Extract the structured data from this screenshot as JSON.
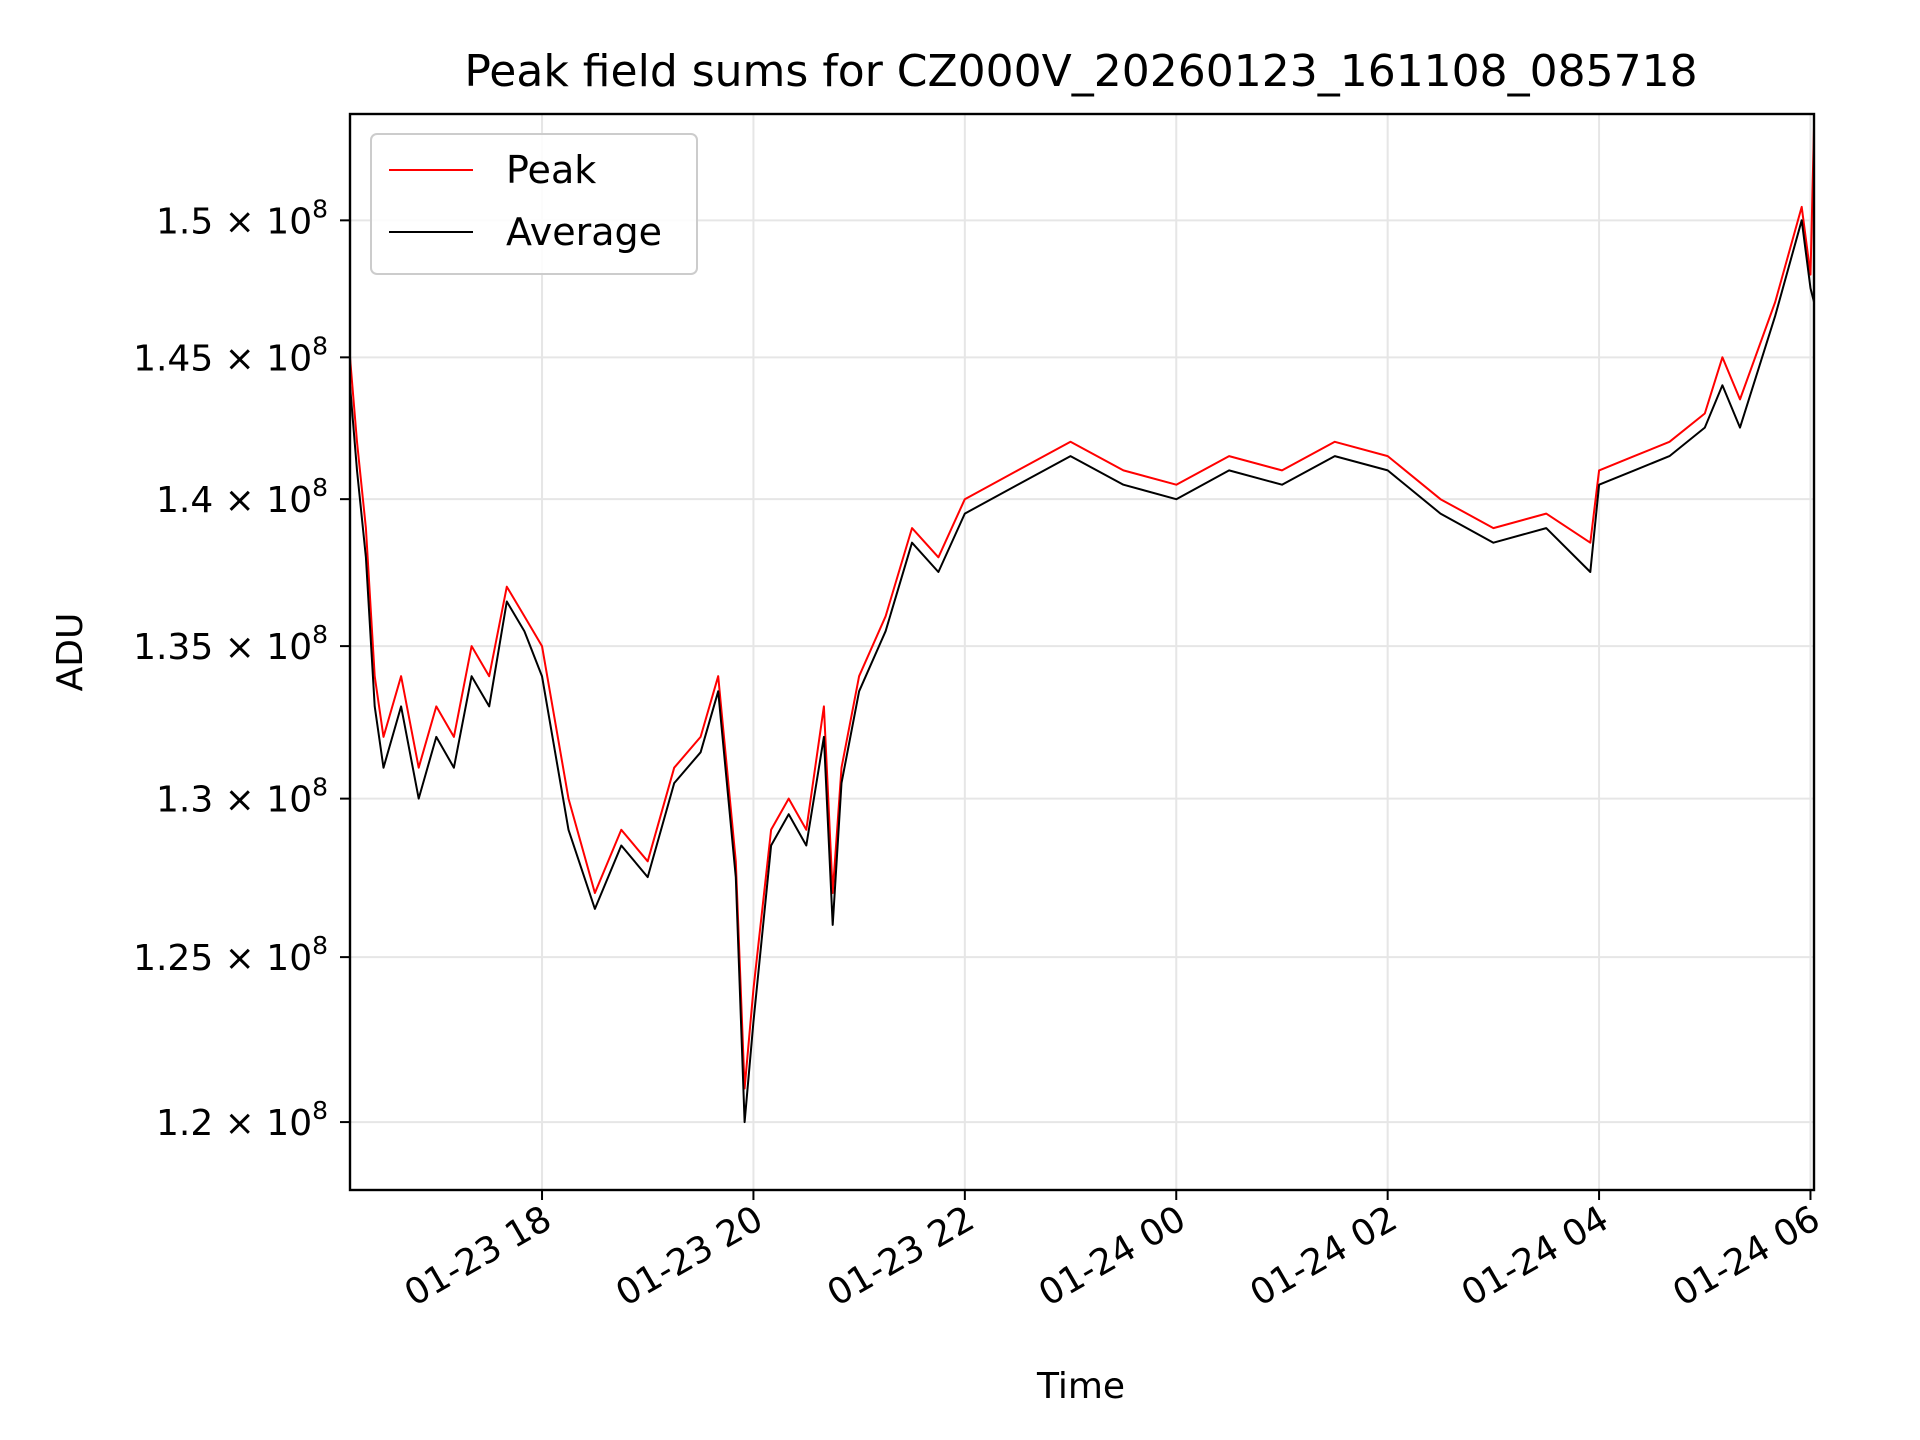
{
  "chart_data": {
    "type": "line",
    "title": "Peak field sums for CZ000V_20260123_161108_085718",
    "xlabel": "Time",
    "ylabel": "ADU",
    "y_scale": "log",
    "grid": true,
    "legend_position": "top-left",
    "xlim": [
      "2026-01-23 16:11",
      "2026-01-24 06:02"
    ],
    "ylim": [
      118000000,
      154000000
    ],
    "x_ticks": [
      {
        "value": "2026-01-23 18:00",
        "label": "01-23 18"
      },
      {
        "value": "2026-01-23 20:00",
        "label": "01-23 20"
      },
      {
        "value": "2026-01-23 22:00",
        "label": "01-23 22"
      },
      {
        "value": "2026-01-24 00:00",
        "label": "01-24 00"
      },
      {
        "value": "2026-01-24 02:00",
        "label": "01-24 02"
      },
      {
        "value": "2026-01-24 04:00",
        "label": "01-24 04"
      },
      {
        "value": "2026-01-24 06:00",
        "label": "01-24 06"
      }
    ],
    "y_ticks": [
      {
        "value": 120000000,
        "mantissa": "1.2",
        "exponent": "8"
      },
      {
        "value": 125000000,
        "mantissa": "1.25",
        "exponent": "8"
      },
      {
        "value": 130000000,
        "mantissa": "1.3",
        "exponent": "8"
      },
      {
        "value": 135000000,
        "mantissa": "1.35",
        "exponent": "8"
      },
      {
        "value": 140000000,
        "mantissa": "1.4",
        "exponent": "8"
      },
      {
        "value": 145000000,
        "mantissa": "1.45",
        "exponent": "8"
      },
      {
        "value": 150000000,
        "mantissa": "1.5",
        "exponent": "8"
      }
    ],
    "series": [
      {
        "name": "Peak",
        "color": "#ff0000",
        "x": [
          "2026-01-23 16:11",
          "2026-01-23 16:15",
          "2026-01-23 16:20",
          "2026-01-23 16:25",
          "2026-01-23 16:30",
          "2026-01-23 16:40",
          "2026-01-23 16:50",
          "2026-01-23 17:00",
          "2026-01-23 17:10",
          "2026-01-23 17:20",
          "2026-01-23 17:30",
          "2026-01-23 17:40",
          "2026-01-23 17:50",
          "2026-01-23 18:00",
          "2026-01-23 18:15",
          "2026-01-23 18:30",
          "2026-01-23 18:45",
          "2026-01-23 19:00",
          "2026-01-23 19:15",
          "2026-01-23 19:30",
          "2026-01-23 19:40",
          "2026-01-23 19:50",
          "2026-01-23 19:55",
          "2026-01-23 20:00",
          "2026-01-23 20:10",
          "2026-01-23 20:20",
          "2026-01-23 20:30",
          "2026-01-23 20:40",
          "2026-01-23 20:45",
          "2026-01-23 20:50",
          "2026-01-23 21:00",
          "2026-01-23 21:15",
          "2026-01-23 21:30",
          "2026-01-23 21:45",
          "2026-01-23 22:00",
          "2026-01-23 22:30",
          "2026-01-23 23:00",
          "2026-01-23 23:30",
          "2026-01-24 00:00",
          "2026-01-24 00:30",
          "2026-01-24 01:00",
          "2026-01-24 01:30",
          "2026-01-24 02:00",
          "2026-01-24 02:30",
          "2026-01-24 03:00",
          "2026-01-24 03:30",
          "2026-01-24 03:55",
          "2026-01-24 04:00",
          "2026-01-24 04:20",
          "2026-01-24 04:40",
          "2026-01-24 05:00",
          "2026-01-24 05:10",
          "2026-01-24 05:20",
          "2026-01-24 05:40",
          "2026-01-24 05:55",
          "2026-01-24 06:00",
          "2026-01-24 06:02"
        ],
        "y": [
          145000000,
          142000000,
          139000000,
          134000000,
          132000000,
          134000000,
          131000000,
          133000000,
          132000000,
          135000000,
          134000000,
          137000000,
          136000000,
          135000000,
          130000000,
          127000000,
          129000000,
          128000000,
          131000000,
          132000000,
          134000000,
          128000000,
          121000000,
          124000000,
          129000000,
          130000000,
          129000000,
          133000000,
          127000000,
          131000000,
          134000000,
          136000000,
          139000000,
          138000000,
          140000000,
          141000000,
          142000000,
          141000000,
          140500000,
          141500000,
          141000000,
          142000000,
          141500000,
          140000000,
          139000000,
          139500000,
          138500000,
          141000000,
          141500000,
          142000000,
          143000000,
          145000000,
          143500000,
          147000000,
          150500000,
          148000000,
          153500000
        ]
      },
      {
        "name": "Average",
        "color": "#000000",
        "x": [
          "2026-01-23 16:11",
          "2026-01-23 16:15",
          "2026-01-23 16:20",
          "2026-01-23 16:25",
          "2026-01-23 16:30",
          "2026-01-23 16:40",
          "2026-01-23 16:50",
          "2026-01-23 17:00",
          "2026-01-23 17:10",
          "2026-01-23 17:20",
          "2026-01-23 17:30",
          "2026-01-23 17:40",
          "2026-01-23 17:50",
          "2026-01-23 18:00",
          "2026-01-23 18:15",
          "2026-01-23 18:30",
          "2026-01-23 18:45",
          "2026-01-23 19:00",
          "2026-01-23 19:15",
          "2026-01-23 19:30",
          "2026-01-23 19:40",
          "2026-01-23 19:50",
          "2026-01-23 19:55",
          "2026-01-23 20:00",
          "2026-01-23 20:10",
          "2026-01-23 20:20",
          "2026-01-23 20:30",
          "2026-01-23 20:40",
          "2026-01-23 20:45",
          "2026-01-23 20:50",
          "2026-01-23 21:00",
          "2026-01-23 21:15",
          "2026-01-23 21:30",
          "2026-01-23 21:45",
          "2026-01-23 22:00",
          "2026-01-23 22:30",
          "2026-01-23 23:00",
          "2026-01-23 23:30",
          "2026-01-24 00:00",
          "2026-01-24 00:30",
          "2026-01-24 01:00",
          "2026-01-24 01:30",
          "2026-01-24 02:00",
          "2026-01-24 02:30",
          "2026-01-24 03:00",
          "2026-01-24 03:30",
          "2026-01-24 03:55",
          "2026-01-24 04:00",
          "2026-01-24 04:20",
          "2026-01-24 04:40",
          "2026-01-24 05:00",
          "2026-01-24 05:10",
          "2026-01-24 05:20",
          "2026-01-24 05:40",
          "2026-01-24 05:55",
          "2026-01-24 06:00",
          "2026-01-24 06:02"
        ],
        "y": [
          144000000,
          141000000,
          138000000,
          133000000,
          131000000,
          133000000,
          130000000,
          132000000,
          131000000,
          134000000,
          133000000,
          136500000,
          135500000,
          134000000,
          129000000,
          126500000,
          128500000,
          127500000,
          130500000,
          131500000,
          133500000,
          127500000,
          120000000,
          123000000,
          128500000,
          129500000,
          128500000,
          132000000,
          126000000,
          130500000,
          133500000,
          135500000,
          138500000,
          137500000,
          139500000,
          140500000,
          141500000,
          140500000,
          140000000,
          141000000,
          140500000,
          141500000,
          141000000,
          139500000,
          138500000,
          139000000,
          137500000,
          140500000,
          141000000,
          141500000,
          142500000,
          144000000,
          142500000,
          146500000,
          150000000,
          147500000,
          147000000
        ]
      }
    ]
  }
}
